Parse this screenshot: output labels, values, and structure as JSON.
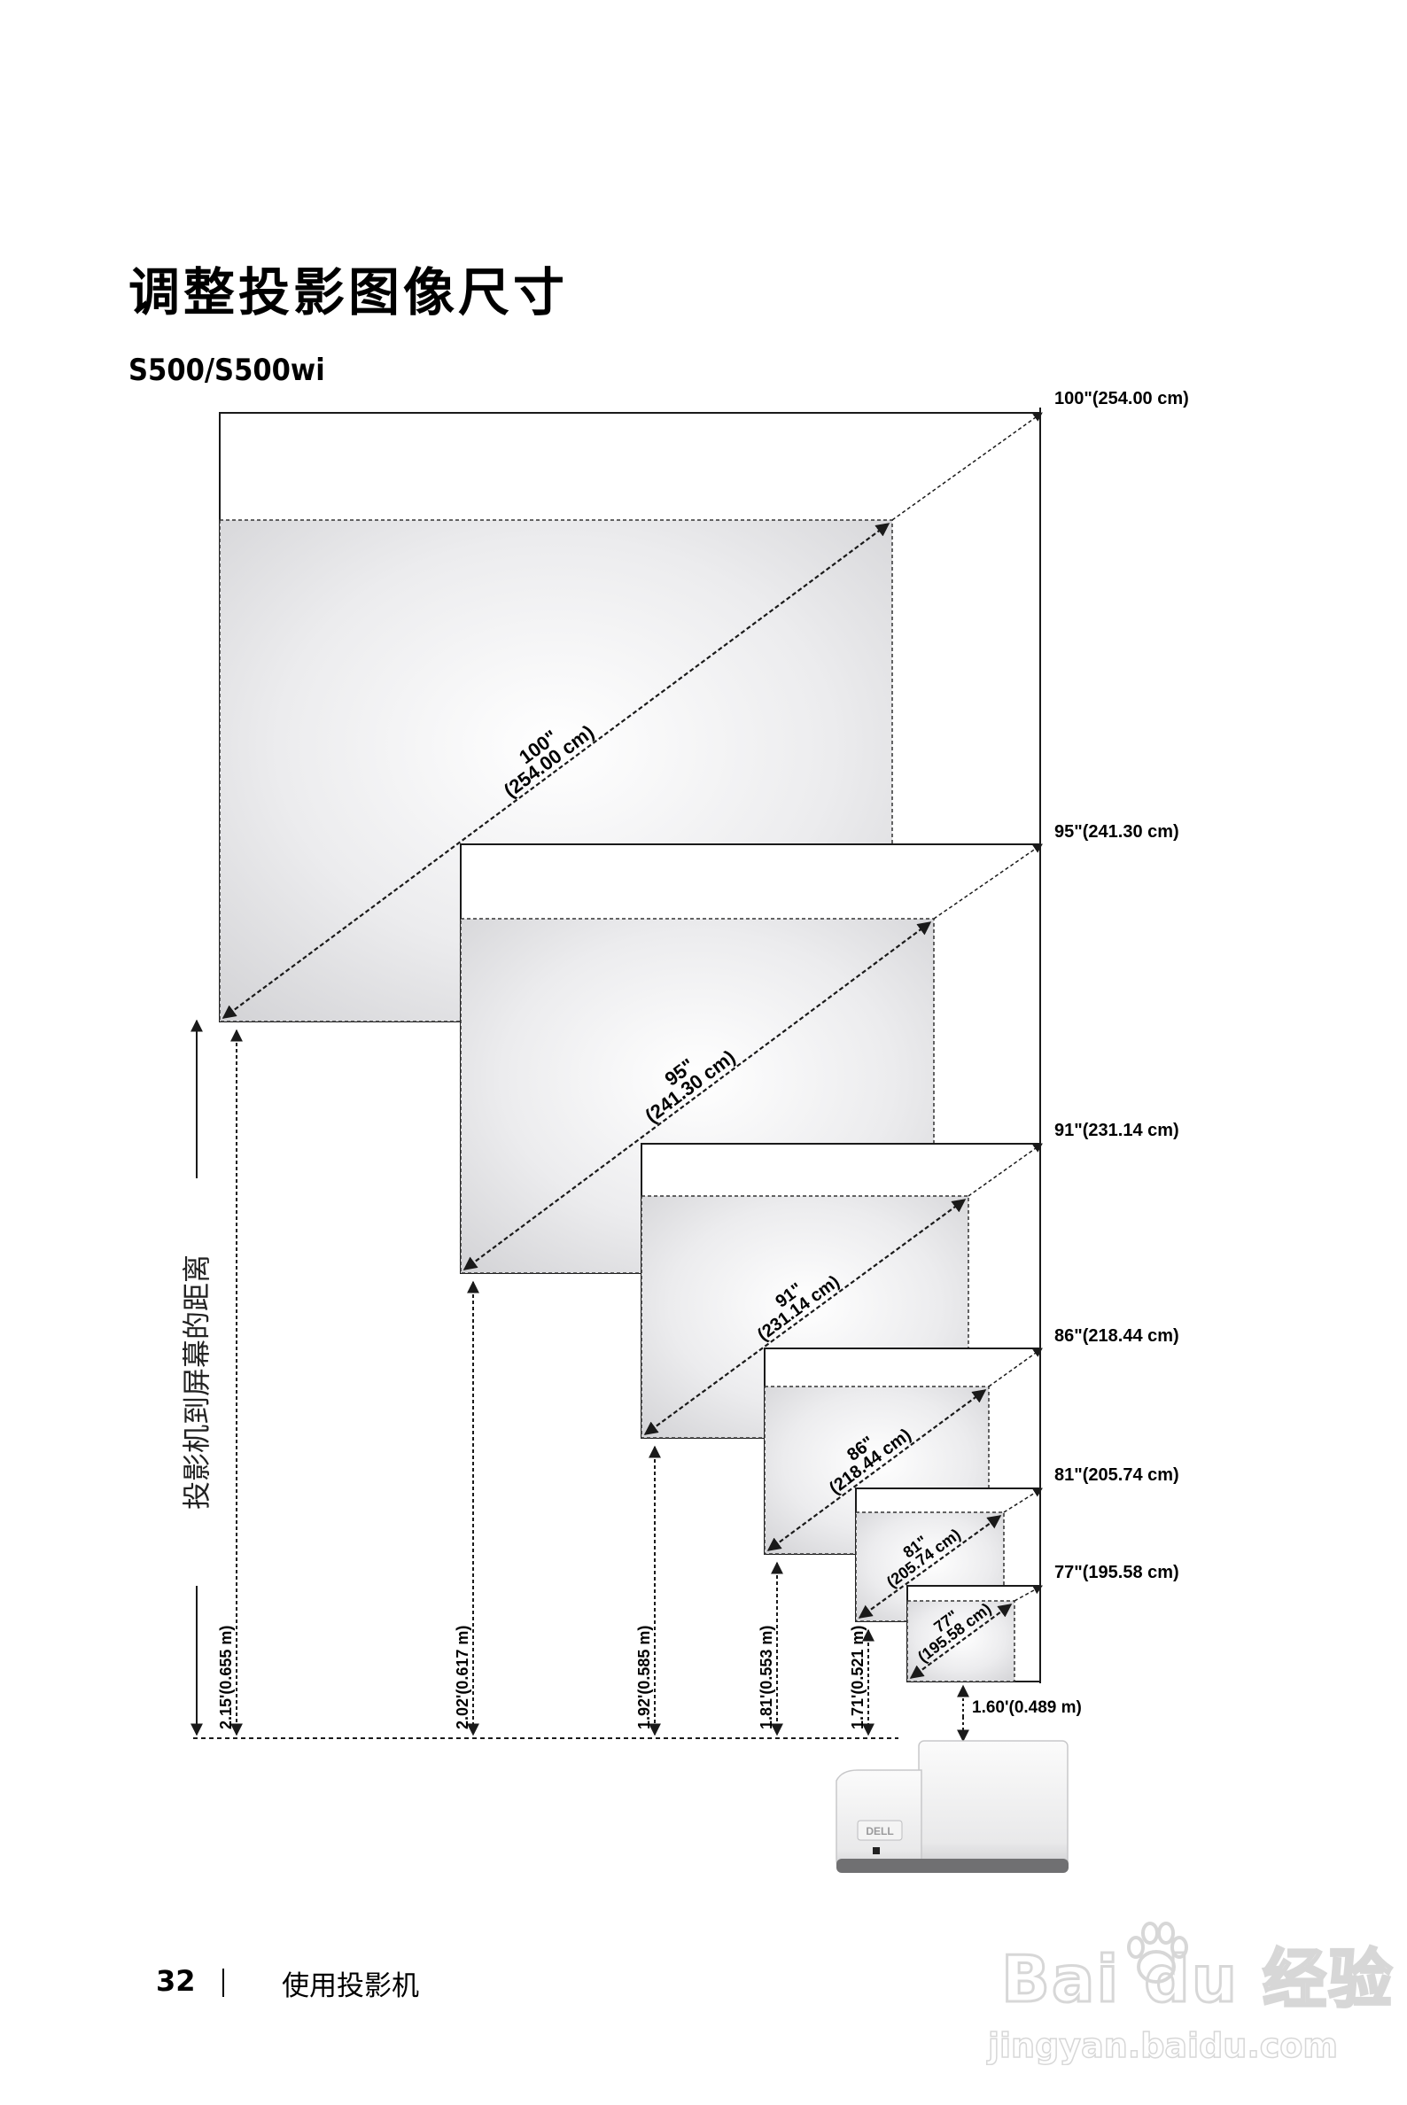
{
  "header": {
    "title": "调整投影图像尺寸",
    "model": "S500/S500wi"
  },
  "diagram": {
    "distance_axis_label": "投影机到屏幕的距离",
    "screens": [
      {
        "diagonal_in": 100,
        "size_label": "100\"(254.00 cm)",
        "diag_line1": "100\"",
        "diag_line2": "(254.00 cm)",
        "height_label": "2.15'(0.655 m)"
      },
      {
        "diagonal_in": 95,
        "size_label": "95\"(241.30 cm)",
        "diag_line1": "95\"",
        "diag_line2": "(241.30 cm)",
        "height_label": "2.02'(0.617 m)"
      },
      {
        "diagonal_in": 91,
        "size_label": "91\"(231.14 cm)",
        "diag_line1": "91\"",
        "diag_line2": "(231.14 cm)",
        "height_label": "1.92'(0.585 m)"
      },
      {
        "diagonal_in": 86,
        "size_label": "86\"(218.44 cm)",
        "diag_line1": "86\"",
        "diag_line2": "(218.44 cm)",
        "height_label": "1.81'(0.553 m)"
      },
      {
        "diagonal_in": 81,
        "size_label": "81\"(205.74 cm)",
        "diag_line1": "81\"",
        "diag_line2": "(205.74 cm)",
        "height_label": "1.71'(0.521 m)"
      },
      {
        "diagonal_in": 77,
        "size_label": "77\"(195.58 cm)",
        "diag_line1": "77\"",
        "diag_line2": "(195.58 cm)",
        "height_label": ""
      }
    ],
    "projector_offset_label": "1.60'(0.489 m)",
    "projector_logo": "DELL"
  },
  "footer": {
    "page_number": "32",
    "section": "使用投影机"
  },
  "watermark": {
    "brand": "Bai du 经验",
    "url": "jingyan.baidu.com"
  },
  "colors": {
    "screen_fill_center": "#ffffff",
    "screen_fill_edge": "#d9d9db",
    "line": "#1a1a1a"
  }
}
